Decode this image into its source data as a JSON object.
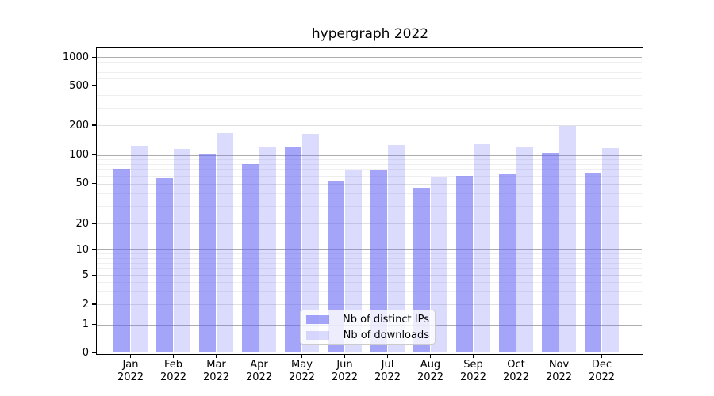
{
  "title": "hypergraph 2022",
  "chart_data": {
    "type": "bar",
    "title": "hypergraph 2022",
    "x_months": [
      "Jan",
      "Feb",
      "Mar",
      "Apr",
      "May",
      "Jun",
      "Jul",
      "Aug",
      "Sep",
      "Oct",
      "Nov",
      "Dec"
    ],
    "x_year": "2022",
    "y_ticks": [
      0,
      1,
      2,
      5,
      10,
      20,
      50,
      100,
      200,
      500,
      1000
    ],
    "y_scale": "symlog (linear 0-1, logarithmic above 1)",
    "ylim": [
      0,
      1250
    ],
    "grid": true,
    "legend_position": "lower center",
    "series": [
      {
        "name": "Nb of distinct IPs",
        "color": "rgba(99,99,245,0.58)",
        "values": [
          70,
          57,
          102,
          80,
          120,
          54,
          69,
          45,
          60,
          62,
          106,
          64
        ]
      },
      {
        "name": "Nb of downloads",
        "color": "rgba(99,99,245,0.23)",
        "values": [
          124,
          116,
          167,
          120,
          164,
          69,
          126,
          58,
          128,
          120,
          195,
          118
        ]
      }
    ]
  },
  "colors": {
    "background": "#ffffff",
    "text": "#000000",
    "axis": "#000000",
    "grid_major": "#adadad",
    "grid_mid": "#e0e0e0",
    "grid_minor": "#efefef",
    "legend_border": "#cccccc",
    "legend_bg": "rgba(255,255,255,0.8)"
  }
}
